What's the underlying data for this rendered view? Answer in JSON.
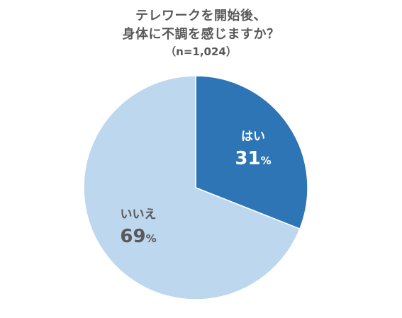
{
  "chart_data": {
    "type": "pie",
    "title_lines": [
      "テレワークを開始後、",
      "身体に不調を感じますか？"
    ],
    "subtitle": "（n=1,024）",
    "slices": [
      {
        "label": "はい",
        "value": 31,
        "value_text": "31",
        "unit": "%",
        "color": "#2e75b6",
        "label_color": "#ffffff"
      },
      {
        "label": "いいえ",
        "value": 69,
        "value_text": "69",
        "unit": "%",
        "color": "#bdd7ee",
        "label_color": "#595959"
      }
    ]
  }
}
